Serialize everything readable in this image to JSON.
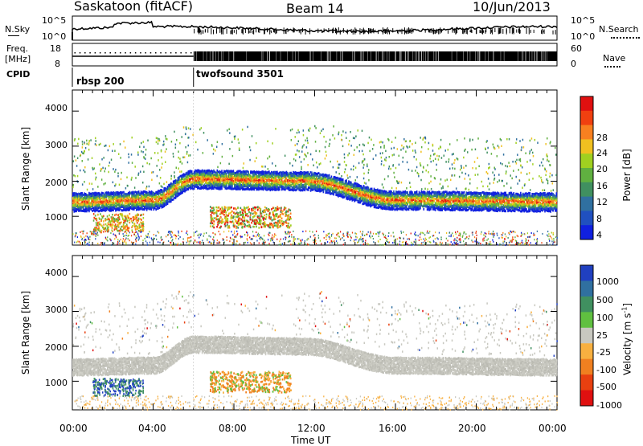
{
  "header": {
    "title": "Saskatoon (fitACF)",
    "beam": "Beam 14",
    "date": "10/Jun/2013"
  },
  "top_panels": {
    "nsky_label": "N.Sky",
    "nsearch_label": "N.Search",
    "nsky_ticks": [
      "10^5",
      "10^0"
    ],
    "nsearch_ticks": [
      "10^5",
      "10^0"
    ],
    "freq_label_1": "Freq.",
    "freq_label_2": "[MHz]",
    "freq_ticks": [
      "18",
      "8"
    ],
    "nave_label": "Nave",
    "nave_ticks": [
      "60",
      "0"
    ],
    "cpid_label": "CPID",
    "cpid_segments": [
      {
        "name": "rbsp 200",
        "start_hour": 0,
        "end_hour": 6
      },
      {
        "name": "twofsound 3501",
        "start_hour": 6,
        "end_hour": 24
      }
    ]
  },
  "power_colorbar": {
    "label": "Power [dB]",
    "ticks": [
      "28",
      "24",
      "20",
      "16",
      "12",
      "8",
      "4"
    ],
    "colors": [
      "#e01010",
      "#f04010",
      "#f88020",
      "#f0c020",
      "#a0d020",
      "#60b040",
      "#409060",
      "#3070a0",
      "#2050c0",
      "#1020e0"
    ]
  },
  "velocity_colorbar": {
    "label": "Velocity [m s^-1]",
    "ticks": [
      "1000",
      "500",
      "100",
      "25",
      "-25",
      "-100",
      "-500",
      "-1000"
    ],
    "colors": [
      "#2040c0",
      "#3070a0",
      "#409060",
      "#60c040",
      "#c8c8c0",
      "#f8b040",
      "#f08020",
      "#e84010",
      "#e01010"
    ]
  },
  "chart_data": [
    {
      "type": "heatmap",
      "title": "Saskatoon (fitACF) Beam 14 10/Jun/2013",
      "parameter": "Power",
      "ylabel": "Slant Range [km]",
      "yticks": [
        1000,
        2000,
        3000,
        4000
      ],
      "ylim": [
        180,
        4600
      ],
      "xlim": [
        0,
        24
      ],
      "bands": [
        {
          "name": "main",
          "start_hour": 0,
          "start_range": 1450,
          "mid1_hour": 4,
          "mid1_range": 1500,
          "peak_hour": 6,
          "peak_range": 2100,
          "peak2_hour": 11.5,
          "peak2_range": 2050,
          "dip_hour": 16,
          "dip_range": 1500,
          "end_hour": 24,
          "end_range": 1450
        }
      ]
    },
    {
      "type": "heatmap",
      "parameter": "Velocity",
      "ylabel": "Slant Range [km]",
      "yticks": [
        1000,
        2000,
        3000,
        4000
      ],
      "ylim": [
        180,
        4600
      ],
      "xlim": [
        0,
        24
      ]
    }
  ],
  "xaxis": {
    "label": "Time UT",
    "ticks": [
      "00:00",
      "04:00",
      "08:00",
      "12:00",
      "16:00",
      "20:00",
      "00:00"
    ]
  }
}
